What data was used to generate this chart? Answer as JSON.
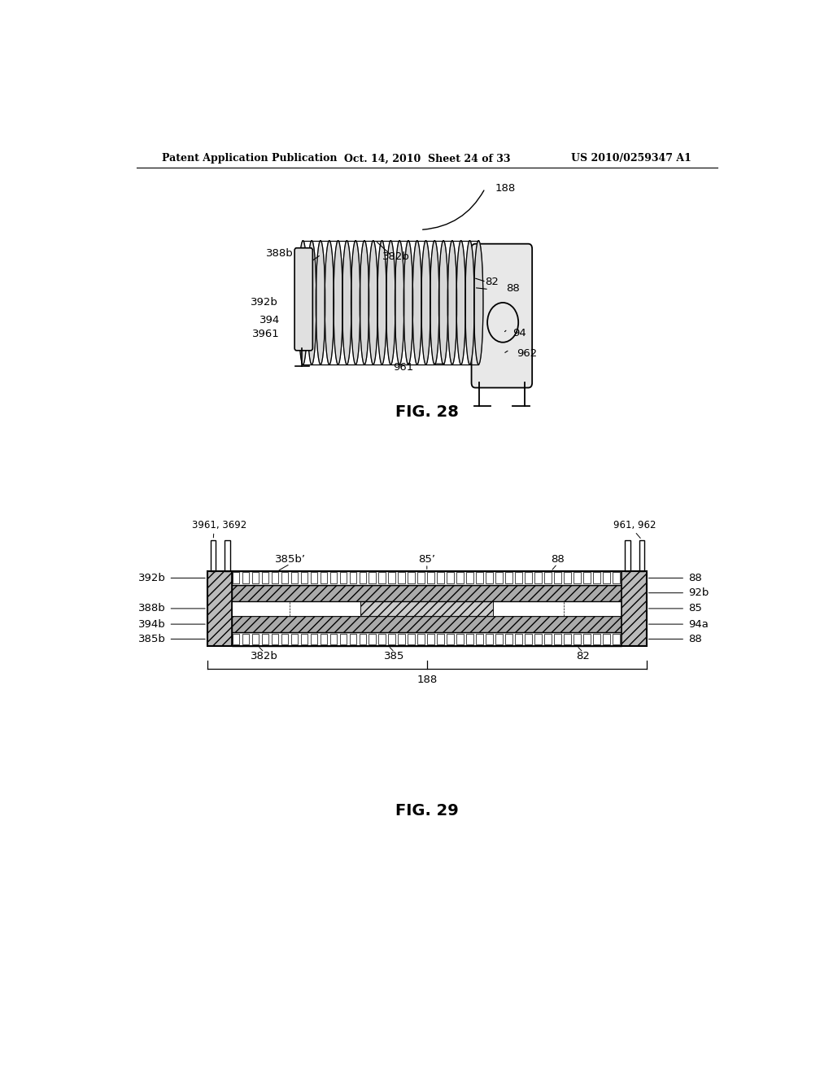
{
  "bg_color": "#ffffff",
  "header_left": "Patent Application Publication",
  "header_mid": "Oct. 14, 2010  Sheet 24 of 33",
  "header_right": "US 2010/0259347 A1",
  "fig28_caption": "FIG. 28",
  "fig29_caption": "FIG. 29"
}
